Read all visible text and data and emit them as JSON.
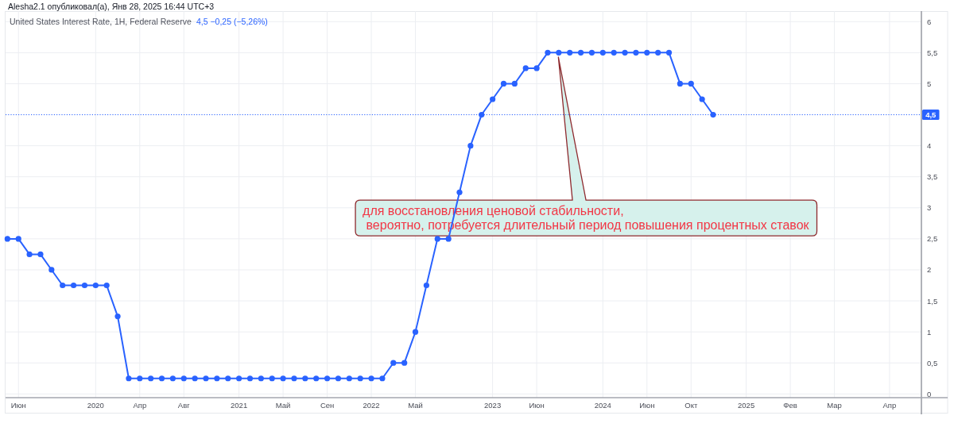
{
  "chart_data": {
    "type": "line",
    "title": "Alesha2.1 опубликовал(а), Янв 28, 2025 16:44 UTC+3",
    "subtitle": "United States Interest Rate, 1H, Federal Reserve",
    "annotations": [
      "4,5 −0,25 (−5,26%)",
      "для восстановления ценовой стабильности,\n вероятно, потребуется длительный период повышения процентных ставок"
    ],
    "categories": [
      null,
      "Июн",
      null,
      null,
      null,
      null,
      null,
      null,
      "2020",
      null,
      null,
      null,
      "Апр",
      null,
      null,
      null,
      "Авг",
      null,
      null,
      null,
      null,
      "2021",
      null,
      null,
      null,
      "Май",
      null,
      null,
      null,
      "Сен",
      null,
      null,
      null,
      "2022",
      null,
      null,
      null,
      "Май",
      null,
      null,
      null,
      null,
      null,
      null,
      "2023",
      null,
      null,
      null,
      "Июн",
      null,
      null,
      null,
      null,
      null,
      "2024",
      null,
      null,
      null,
      "Июн",
      null,
      null,
      null,
      "Окт",
      null,
      null,
      null,
      null,
      "2025",
      null,
      null,
      null,
      "Фев",
      null,
      null,
      null,
      "Мар",
      null,
      null,
      null,
      null,
      "Апр",
      null,
      null
    ],
    "series": [
      {
        "color": "#2962ff",
        "values": [
          2.5,
          2.5,
          2.25,
          2.25,
          2,
          1.75,
          1.75,
          1.75,
          1.75,
          1.75,
          1.25,
          0.25,
          0.25,
          0.25,
          0.25,
          0.25,
          0.25,
          0.25,
          0.25,
          0.25,
          0.25,
          0.25,
          0.25,
          0.25,
          0.25,
          0.25,
          0.25,
          0.25,
          0.25,
          0.25,
          0.25,
          0.25,
          0.25,
          0.25,
          0.25,
          0.5,
          0.5,
          1,
          1.75,
          2.5,
          2.5,
          3.25,
          4,
          4.5,
          4.75,
          5,
          5,
          5.25,
          5.25,
          5.5,
          5.5,
          5.5,
          5.5,
          5.5,
          5.5,
          5.5,
          5.5,
          5.5,
          5.5,
          5.5,
          5.5,
          5,
          5,
          4.75,
          4.5,
          null,
          null,
          null,
          null,
          null,
          null,
          null,
          null,
          null,
          null,
          null,
          null,
          null,
          null,
          null,
          null,
          null,
          null
        ]
      }
    ],
    "ylim": [
      -0.06,
      6.17
    ],
    "yticks": [
      0,
      {
        "value": 0.5,
        "label": "0,5"
      },
      1,
      {
        "value": 1.5,
        "label": "1,5"
      },
      2,
      {
        "value": 2.5,
        "label": "2,5"
      },
      3,
      {
        "value": 3.5,
        "label": "3,5"
      },
      4,
      5,
      {
        "value": 5.5,
        "label": "5,5"
      },
      6
    ],
    "grid": true,
    "marker": "circle",
    "line_style": "solid",
    "ref_lines": [
      {
        "axis": "y",
        "value": 4.5,
        "label": "4,5",
        "color": "#2962ff",
        "line_style": "dotted"
      }
    ]
  }
}
